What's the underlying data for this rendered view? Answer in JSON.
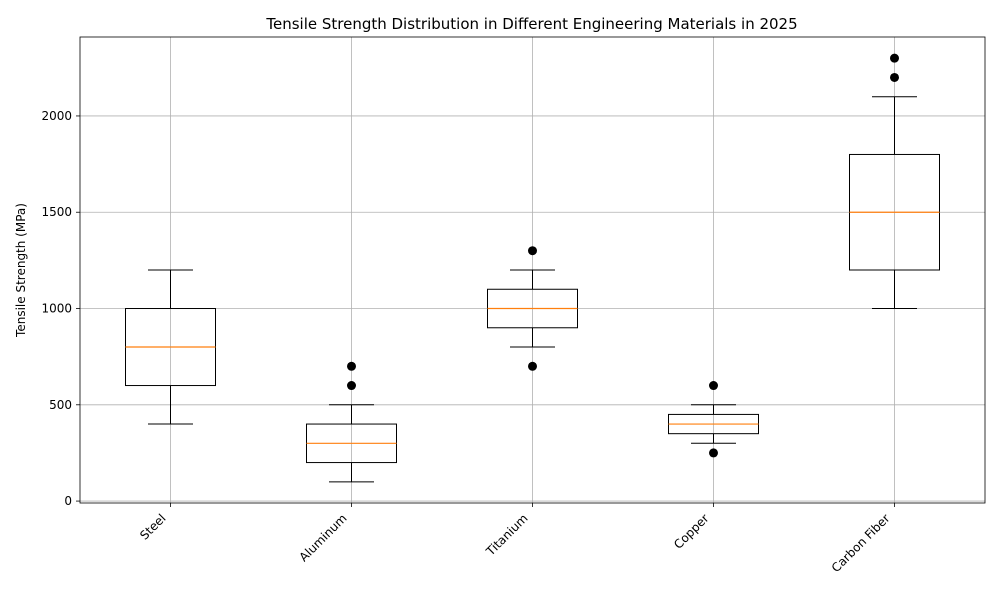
{
  "chart_data": {
    "type": "box",
    "title": "Tensile Strength Distribution in Different Engineering Materials in 2025",
    "xlabel": "",
    "ylabel": "Tensile Strength (MPa)",
    "ylim": [
      -10,
      2410
    ],
    "yticks": [
      0,
      500,
      1000,
      1500,
      2000
    ],
    "grid": true,
    "categories": [
      "Steel",
      "Aluminum",
      "Titanium",
      "Copper",
      "Carbon Fiber"
    ],
    "boxes": [
      {
        "category": "Steel",
        "whisker_low": 400,
        "q1": 600,
        "median": 800,
        "q3": 1000,
        "whisker_high": 1200,
        "outliers": []
      },
      {
        "category": "Aluminum",
        "whisker_low": 100,
        "q1": 200,
        "median": 300,
        "q3": 400,
        "whisker_high": 500,
        "outliers": [
          600,
          700
        ]
      },
      {
        "category": "Titanium",
        "whisker_low": 800,
        "q1": 900,
        "median": 1000,
        "q3": 1100,
        "whisker_high": 1200,
        "outliers": [
          700,
          1300
        ]
      },
      {
        "category": "Copper",
        "whisker_low": 300,
        "q1": 350,
        "median": 400,
        "q3": 450,
        "whisker_high": 500,
        "outliers": [
          250,
          600
        ]
      },
      {
        "category": "Carbon Fiber",
        "whisker_low": 1000,
        "q1": 1200,
        "median": 1500,
        "q3": 1800,
        "whisker_high": 2100,
        "outliers": [
          2200,
          2300
        ]
      }
    ],
    "colors": {
      "box": "#000000",
      "median": "#ff7f0e",
      "grid": "#b0b0b0",
      "outlier": "#000000"
    }
  }
}
